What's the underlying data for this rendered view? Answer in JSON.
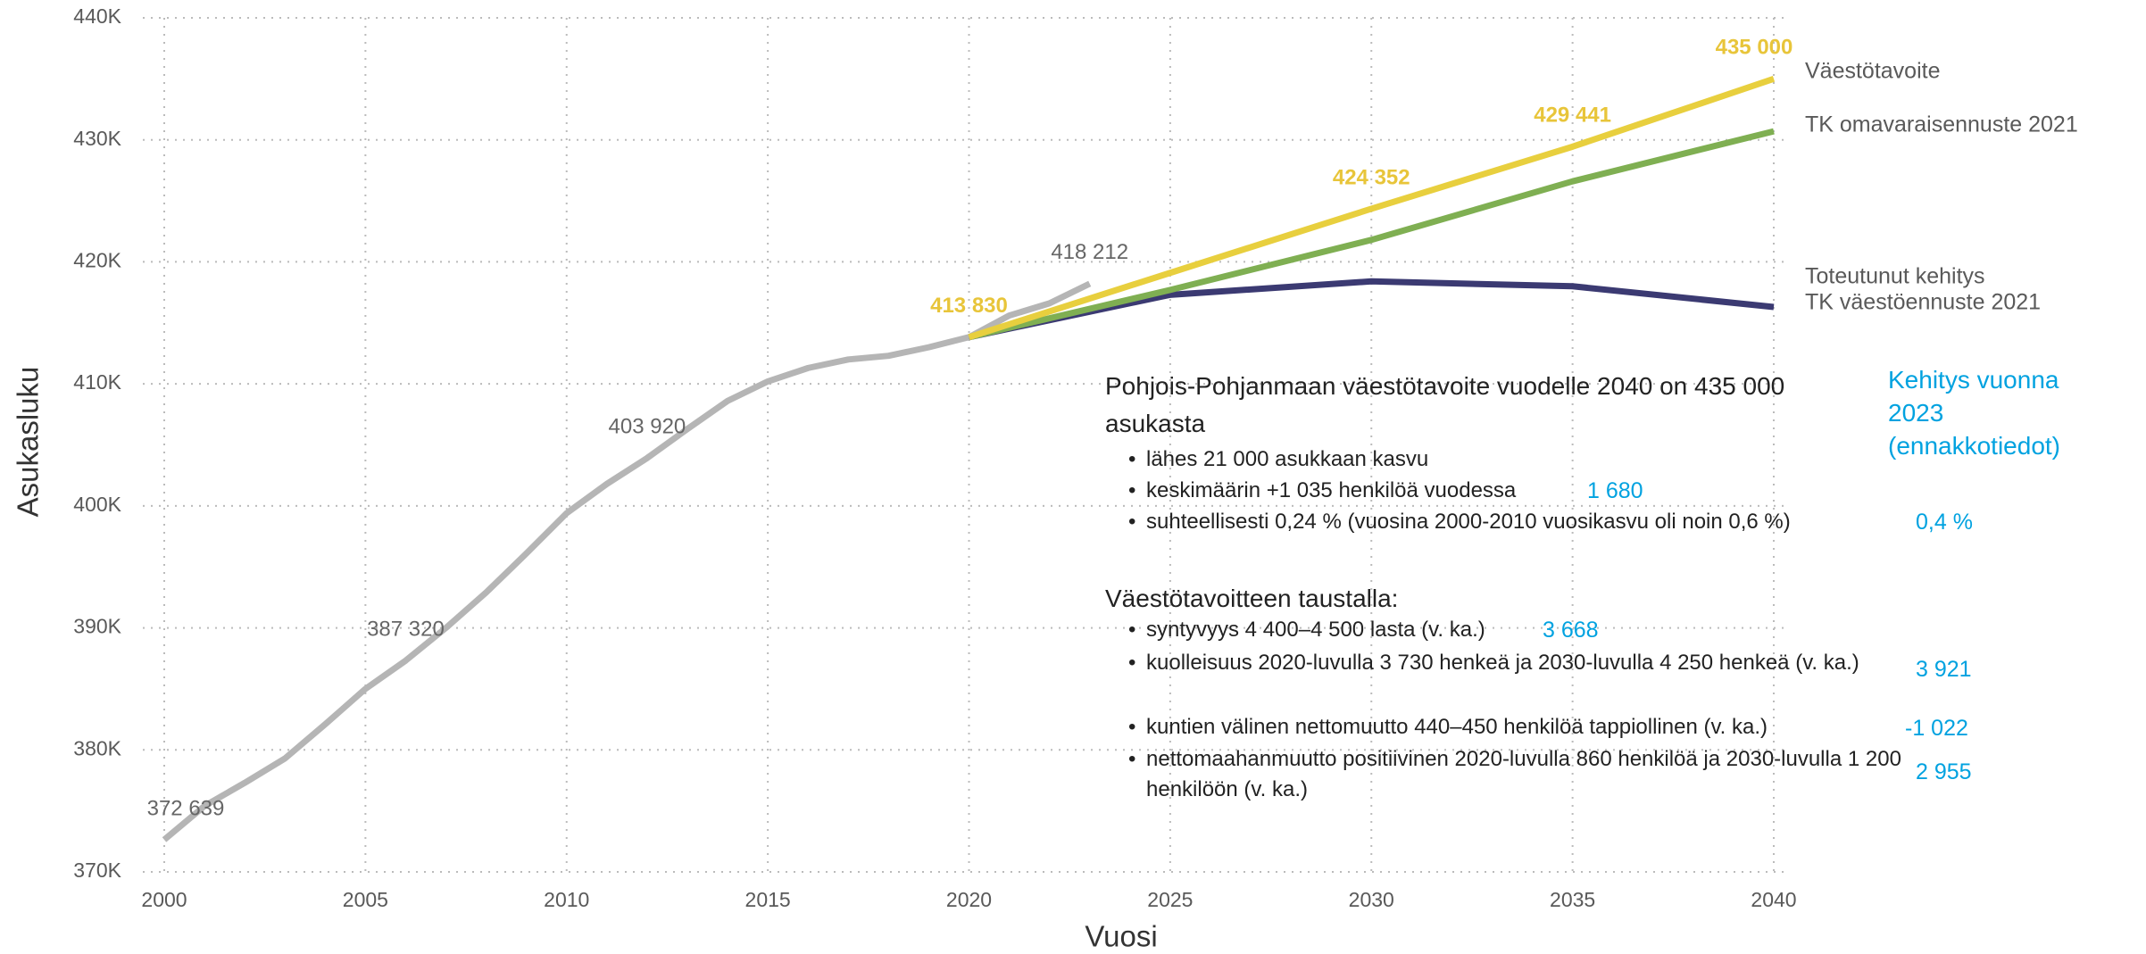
{
  "chart_data": {
    "type": "line",
    "x_label": "Vuosi",
    "y_label": "Asukasluku",
    "xlim": [
      2000,
      2040
    ],
    "ylim": [
      370000,
      440000
    ],
    "xticks": [
      2000,
      2005,
      2010,
      2015,
      2020,
      2025,
      2030,
      2035,
      2040
    ],
    "yticks": [
      {
        "value": 370000,
        "label": "370K"
      },
      {
        "value": 380000,
        "label": "380K"
      },
      {
        "value": 390000,
        "label": "390K"
      },
      {
        "value": 400000,
        "label": "400K"
      },
      {
        "value": 410000,
        "label": "410K"
      },
      {
        "value": 420000,
        "label": "420K"
      },
      {
        "value": 430000,
        "label": "430K"
      },
      {
        "value": 440000,
        "label": "440K"
      }
    ],
    "grid": true,
    "series": [
      {
        "name": "Toteutunut kehitys",
        "color": "#b5b5b5",
        "x": [
          2000,
          2001,
          2002,
          2003,
          2004,
          2005,
          2006,
          2007,
          2008,
          2009,
          2010,
          2011,
          2012,
          2013,
          2014,
          2015,
          2016,
          2017,
          2018,
          2019,
          2020,
          2021,
          2022,
          2023
        ],
        "values": [
          372639,
          375400,
          377300,
          379300,
          382100,
          385000,
          387320,
          390000,
          392900,
          396100,
          399400,
          401800,
          403920,
          406300,
          408600,
          410200,
          411300,
          412000,
          412300,
          413000,
          413830,
          415600,
          416600,
          418212
        ],
        "value_labels": [
          "372 639",
          null,
          null,
          null,
          null,
          null,
          "387 320",
          null,
          null,
          null,
          null,
          null,
          "403 920",
          null,
          null,
          null,
          null,
          null,
          null,
          null,
          null,
          null,
          null,
          "418 212"
        ]
      },
      {
        "name": "TK väestöennuste 2021",
        "color": "#3b3a72",
        "x": [
          2020,
          2025,
          2030,
          2035,
          2040
        ],
        "values": [
          413830,
          417300,
          418400,
          418000,
          416300
        ]
      },
      {
        "name": "TK omavaraisennuste 2021",
        "color": "#7faf52",
        "x": [
          2020,
          2025,
          2030,
          2035,
          2040
        ],
        "values": [
          413830,
          417700,
          421800,
          426600,
          430700
        ]
      },
      {
        "name": "Väestötavoite",
        "color": "#e8cf3e",
        "x": [
          2020,
          2025,
          2030,
          2035,
          2040
        ],
        "values": [
          413830,
          419100,
          424352,
          429441,
          435000
        ],
        "value_labels": [
          "413 830",
          null,
          "424 352",
          "429 441",
          "435 000"
        ]
      }
    ],
    "text_box": {
      "heading1": "Pohjois-Pohjanmaan väestötavoite vuodelle 2040 on 435 000 asukasta",
      "bullets1": [
        {
          "text": "lähes 21 000 asukkaan kasvu"
        },
        {
          "text": "keskimäärin +1 035 henkilöä vuodessa",
          "extra": "1 680"
        },
        {
          "text": "suhteellisesti 0,24 % (vuosina 2000-2010 vuosikasvu oli noin 0,6 %)",
          "extra": "0,4 %"
        }
      ],
      "heading2": "Väestötavoitteen taustalla:",
      "bullets2": [
        {
          "text": "syntyvyys 4 400–4 500 lasta (v. ka.)",
          "extra": "3 668"
        },
        {
          "text": "kuolleisuus 2020-luvulla 3 730 henkeä ja 2030-luvulla 4 250 henkeä (v. ka.)",
          "extra": "3 921"
        },
        {
          "text": "kuntien välinen nettomuutto 440–450 henkilöä tappiollinen (v. ka.)",
          "extra": "-1 022"
        },
        {
          "text": "nettomaahanmuutto positiivinen 2020-luvulla 860 henkilöä ja 2030-luvulla 1 200 henkilöön (v. ka.)",
          "extra": "2 955"
        }
      ],
      "side_title": "Kehitys vuonna 2023 (ennakkotiedot)"
    }
  }
}
